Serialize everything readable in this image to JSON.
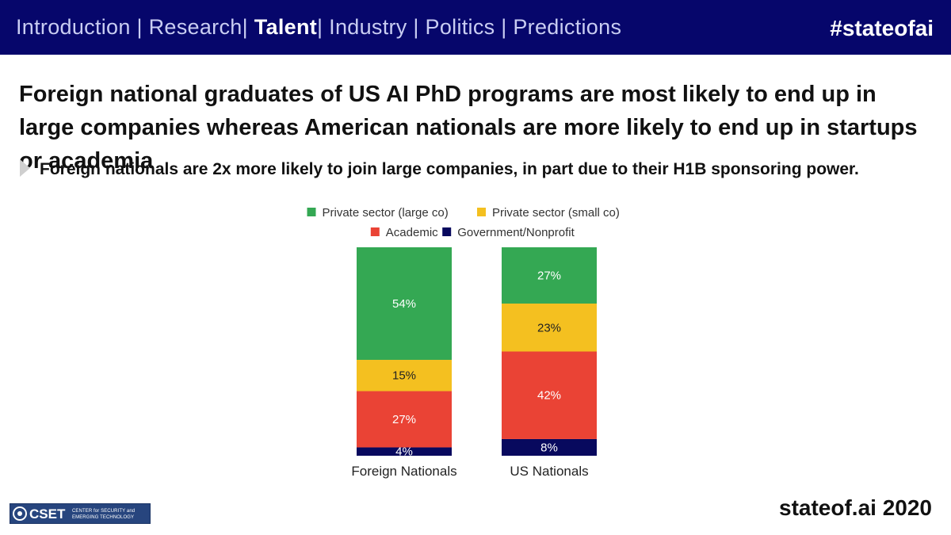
{
  "nav": {
    "items": [
      {
        "label": "Introduction",
        "active": false
      },
      {
        "label": "Research",
        "active": false
      },
      {
        "label": "Talent",
        "active": true
      },
      {
        "label": "Industry",
        "active": false
      },
      {
        "label": "Politics",
        "active": false
      },
      {
        "label": "Predictions",
        "active": false
      }
    ],
    "hashtag": "#stateofai"
  },
  "slide": {
    "headline": "Foreign national graduates of US AI PhD programs are most likely to end up in large companies whereas American nationals are more likely to end up in startups or academia",
    "bullet": "Foreign nationals are 2x more likely to join large companies, in part due to their H1B sponsoring power."
  },
  "footer": {
    "logo_word": "CSET",
    "logo_sub": "CENTER for SECURITY and EMERGING TECHNOLOGY",
    "site": "stateof.ai 2020"
  },
  "colors": {
    "nav_background": "#06066b",
    "nav_text": "#c9cdf2",
    "nav_active": "#ffffff"
  },
  "chart_data": {
    "type": "bar",
    "stacked": true,
    "categories": [
      "Foreign Nationals",
      "US Nationals"
    ],
    "series": [
      {
        "name": "Government/Nonprofit",
        "values": [
          4,
          8
        ],
        "color": "#08095e",
        "label_color": "#ffffff"
      },
      {
        "name": "Academic",
        "values": [
          27,
          42
        ],
        "color": "#ea4335",
        "label_color": "#ffffff"
      },
      {
        "name": "Private sector (small co)",
        "values": [
          15,
          23
        ],
        "color": "#f4c020",
        "label_color": "#222222"
      },
      {
        "name": "Private sector (large co)",
        "values": [
          54,
          27
        ],
        "color": "#34a853",
        "label_color": "#ffffff"
      }
    ],
    "data_labels": [
      [
        "4%",
        "27%",
        "15%",
        "54%"
      ],
      [
        "8%",
        "42%",
        "23%",
        "27%"
      ]
    ],
    "legend_order": [
      "Private sector (large co)",
      "Private sector (small co)",
      "Academic",
      "Government/Nonprofit"
    ],
    "legend_position": "top",
    "ylim": [
      0,
      100
    ],
    "grid": false,
    "title": "",
    "xlabel": "",
    "ylabel": ""
  }
}
